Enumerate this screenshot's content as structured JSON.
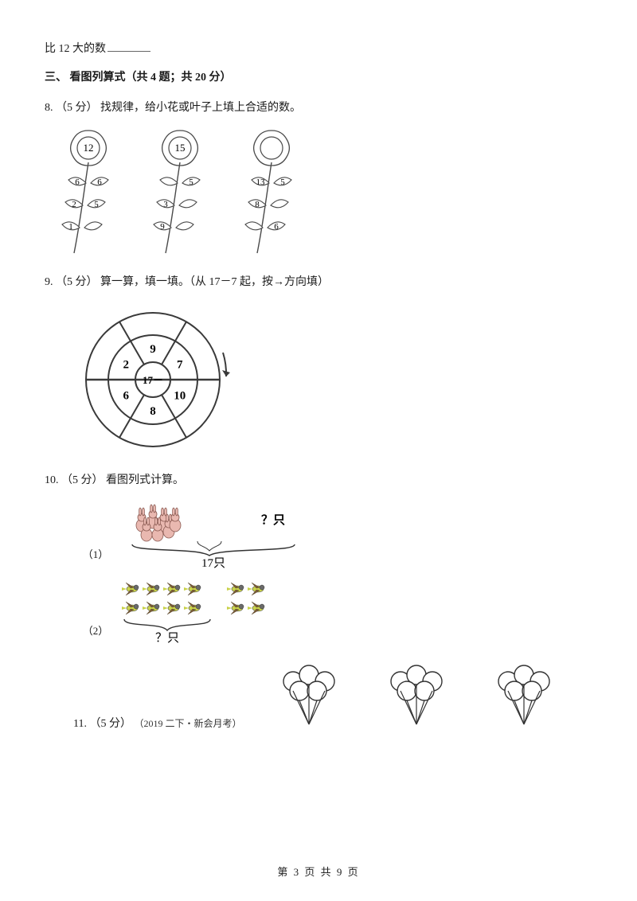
{
  "topline": {
    "prefix": "比 12 大的数"
  },
  "section3": {
    "label": "三、",
    "title": "看图列算式（共 4 题；共 20 分）"
  },
  "q8": {
    "num": "8.",
    "pts": "（5 分）",
    "text": "找规律，给小花或叶子上填上合适的数。",
    "flowers": [
      {
        "head": "12",
        "leaves": [
          "6",
          "6",
          "2",
          "5",
          "1",
          ""
        ]
      },
      {
        "head": "15",
        "leaves": [
          "",
          "5",
          "3",
          "",
          "9",
          ""
        ]
      },
      {
        "head": "",
        "leaves": [
          "13",
          "5",
          "8",
          "",
          "",
          "6"
        ]
      }
    ],
    "stroke": "#4a4a4a",
    "fill": "#ffffff"
  },
  "q9": {
    "num": "9.",
    "pts": "（5 分）",
    "text": "算一算，填一填。（从 17－7 起，按→方向填）",
    "center": "17－",
    "segs": [
      "9",
      "7",
      "10",
      "8",
      "6",
      "2"
    ],
    "stroke": "#3a3a3a"
  },
  "q10": {
    "num": "10.",
    "pts": "（5 分）",
    "text": "看图列式计算。",
    "p1": {
      "label": "（1）",
      "total": "17只",
      "qmark": "？只",
      "rabbit_fill": "#e9b8b0",
      "rabbit_stroke": "#8a5a52"
    },
    "p2": {
      "label": "（2）",
      "total": "？只",
      "bird_body": "#c9d24a",
      "bird_head": "#6a6a6a",
      "bird_wing": "#7a5a38"
    }
  },
  "q11": {
    "num": "11.",
    "pts": "（5 分）",
    "src": "（2019 二下・新会月考）",
    "balloon_stroke": "#333"
  },
  "footer": {
    "text": "第 3 页 共 9 页"
  }
}
